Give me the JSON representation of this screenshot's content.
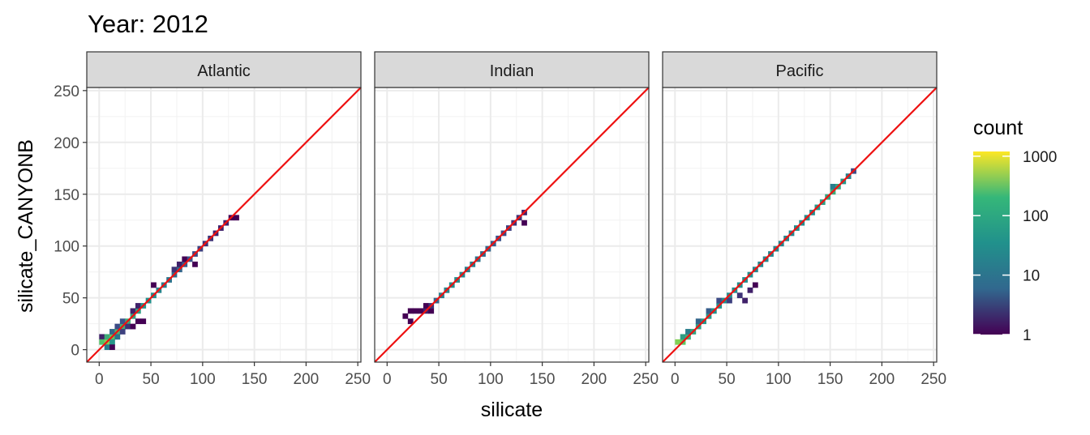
{
  "chart_data": {
    "type": "heatmap",
    "title": "Year: 2012",
    "xlabel": "silicate",
    "ylabel": "silicate_CANYONB",
    "xlim": [
      -12,
      253
    ],
    "ylim": [
      -12,
      253
    ],
    "x_ticks": [
      0,
      50,
      100,
      150,
      200,
      250
    ],
    "y_ticks": [
      0,
      50,
      100,
      150,
      200,
      250
    ],
    "bin_width": 5,
    "reference_line": {
      "slope": 1,
      "intercept": 0,
      "color": "#ee1111"
    },
    "grid": true,
    "legend": {
      "title": "count",
      "position": "right",
      "scale": "log10",
      "labels": [
        "1",
        "10",
        "100",
        "1000"
      ],
      "values": [
        1,
        10,
        100,
        1000
      ],
      "colors": [
        "#440154",
        "#31688e",
        "#21918c",
        "#35b779",
        "#fde725"
      ]
    },
    "panels": [
      {
        "name": "Atlantic",
        "cells": [
          [
            0,
            10,
            2
          ],
          [
            0,
            5,
            150
          ],
          [
            5,
            5,
            300
          ],
          [
            5,
            10,
            80
          ],
          [
            5,
            0,
            20
          ],
          [
            10,
            10,
            200
          ],
          [
            10,
            5,
            40
          ],
          [
            10,
            15,
            10
          ],
          [
            15,
            15,
            120
          ],
          [
            15,
            10,
            15
          ],
          [
            15,
            20,
            5
          ],
          [
            20,
            20,
            90
          ],
          [
            20,
            25,
            6
          ],
          [
            20,
            15,
            4
          ],
          [
            25,
            25,
            80
          ],
          [
            25,
            20,
            3
          ],
          [
            30,
            30,
            60
          ],
          [
            30,
            35,
            2
          ],
          [
            35,
            35,
            50
          ],
          [
            35,
            40,
            2
          ],
          [
            40,
            40,
            40
          ],
          [
            40,
            25,
            1
          ],
          [
            45,
            45,
            35
          ],
          [
            50,
            50,
            30
          ],
          [
            55,
            55,
            25
          ],
          [
            50,
            60,
            1
          ],
          [
            60,
            60,
            20
          ],
          [
            65,
            65,
            15
          ],
          [
            70,
            70,
            12
          ],
          [
            70,
            75,
            3
          ],
          [
            75,
            75,
            10
          ],
          [
            75,
            80,
            2
          ],
          [
            80,
            80,
            8
          ],
          [
            80,
            85,
            1
          ],
          [
            85,
            85,
            6
          ],
          [
            90,
            90,
            5
          ],
          [
            90,
            80,
            1
          ],
          [
            95,
            95,
            4
          ],
          [
            100,
            100,
            3
          ],
          [
            105,
            105,
            3
          ],
          [
            110,
            110,
            2
          ],
          [
            115,
            115,
            2
          ],
          [
            120,
            120,
            2
          ],
          [
            125,
            125,
            1
          ],
          [
            130,
            125,
            1
          ],
          [
            30,
            20,
            1
          ],
          [
            35,
            25,
            1
          ],
          [
            10,
            0,
            1
          ]
        ]
      },
      {
        "name": "Indian",
        "cells": [
          [
            15,
            30,
            1
          ],
          [
            20,
            35,
            1
          ],
          [
            20,
            25,
            1
          ],
          [
            25,
            35,
            1
          ],
          [
            30,
            35,
            1
          ],
          [
            35,
            40,
            1
          ],
          [
            35,
            35,
            2
          ],
          [
            40,
            35,
            1
          ],
          [
            40,
            40,
            3
          ],
          [
            45,
            45,
            10
          ],
          [
            50,
            50,
            20
          ],
          [
            55,
            55,
            25
          ],
          [
            60,
            60,
            30
          ],
          [
            65,
            65,
            30
          ],
          [
            70,
            70,
            25
          ],
          [
            75,
            75,
            20
          ],
          [
            80,
            80,
            20
          ],
          [
            85,
            85,
            15
          ],
          [
            90,
            90,
            12
          ],
          [
            95,
            95,
            10
          ],
          [
            100,
            100,
            8
          ],
          [
            105,
            105,
            6
          ],
          [
            110,
            110,
            5
          ],
          [
            115,
            115,
            4
          ],
          [
            120,
            120,
            3
          ],
          [
            125,
            125,
            3
          ],
          [
            130,
            130,
            2
          ],
          [
            130,
            120,
            1
          ]
        ]
      },
      {
        "name": "Pacific",
        "cells": [
          [
            0,
            5,
            300
          ],
          [
            5,
            5,
            200
          ],
          [
            5,
            10,
            50
          ],
          [
            10,
            10,
            80
          ],
          [
            10,
            15,
            20
          ],
          [
            15,
            15,
            60
          ],
          [
            20,
            20,
            50
          ],
          [
            20,
            25,
            10
          ],
          [
            25,
            25,
            40
          ],
          [
            30,
            30,
            40
          ],
          [
            30,
            35,
            8
          ],
          [
            35,
            35,
            35
          ],
          [
            40,
            40,
            35
          ],
          [
            40,
            45,
            5
          ],
          [
            45,
            45,
            30
          ],
          [
            50,
            50,
            30
          ],
          [
            50,
            45,
            4
          ],
          [
            55,
            55,
            30
          ],
          [
            60,
            60,
            30
          ],
          [
            60,
            50,
            3
          ],
          [
            65,
            65,
            30
          ],
          [
            65,
            45,
            2
          ],
          [
            70,
            70,
            30
          ],
          [
            70,
            55,
            2
          ],
          [
            75,
            75,
            25
          ],
          [
            75,
            60,
            1
          ],
          [
            80,
            80,
            25
          ],
          [
            85,
            85,
            25
          ],
          [
            90,
            90,
            25
          ],
          [
            95,
            95,
            25
          ],
          [
            100,
            100,
            25
          ],
          [
            105,
            105,
            25
          ],
          [
            110,
            110,
            25
          ],
          [
            115,
            115,
            30
          ],
          [
            120,
            120,
            30
          ],
          [
            125,
            125,
            30
          ],
          [
            130,
            130,
            30
          ],
          [
            135,
            135,
            40
          ],
          [
            140,
            140,
            50
          ],
          [
            145,
            145,
            60
          ],
          [
            150,
            150,
            80
          ],
          [
            150,
            155,
            20
          ],
          [
            155,
            155,
            60
          ],
          [
            160,
            160,
            40
          ],
          [
            165,
            165,
            20
          ],
          [
            170,
            170,
            5
          ]
        ]
      }
    ]
  }
}
